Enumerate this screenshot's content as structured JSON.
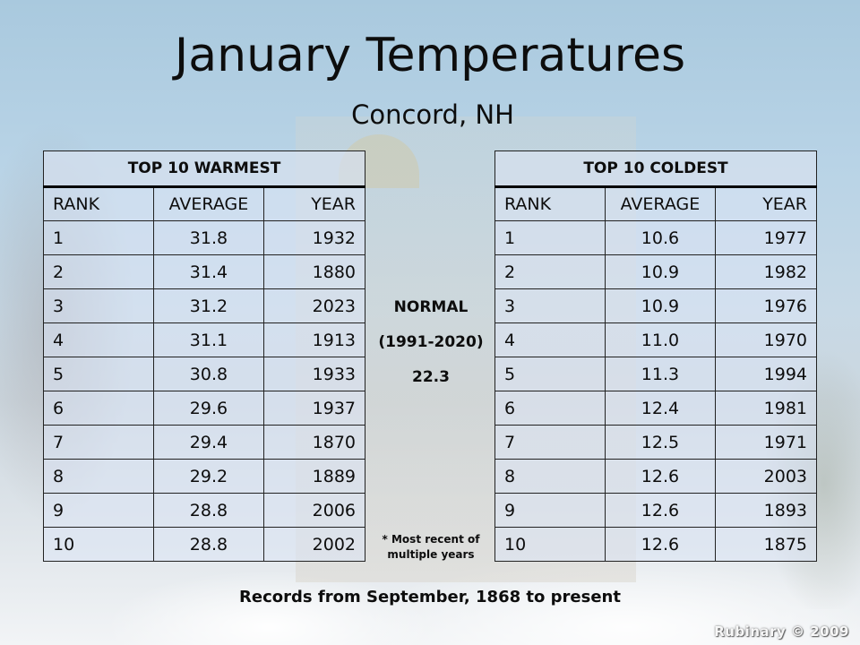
{
  "title": "January Temperatures",
  "subtitle": "Concord, NH",
  "warmest": {
    "header": "TOP 10 WARMEST",
    "columns": [
      "RANK",
      "AVERAGE",
      "YEAR"
    ],
    "rows": [
      [
        "1",
        "31.8",
        "1932"
      ],
      [
        "2",
        "31.4",
        "1880"
      ],
      [
        "3",
        "31.2",
        "2023"
      ],
      [
        "4",
        "31.1",
        "1913"
      ],
      [
        "5",
        "30.8",
        "1933"
      ],
      [
        "6",
        "29.6",
        "1937"
      ],
      [
        "7",
        "29.4",
        "1870"
      ],
      [
        "8",
        "29.2",
        "1889"
      ],
      [
        "9",
        "28.8",
        "2006"
      ],
      [
        "10",
        "28.8",
        "2002"
      ]
    ]
  },
  "coldest": {
    "header": "TOP 10 COLDEST",
    "columns": [
      "RANK",
      "AVERAGE",
      "YEAR"
    ],
    "rows": [
      [
        "1",
        "10.6",
        "1977"
      ],
      [
        "2",
        "10.9",
        "1982"
      ],
      [
        "3",
        "10.9",
        "1976"
      ],
      [
        "4",
        "11.0",
        "1970"
      ],
      [
        "5",
        "11.3",
        "1994"
      ],
      [
        "6",
        "12.4",
        "1981"
      ],
      [
        "7",
        "12.5",
        "1971"
      ],
      [
        "8",
        "12.6",
        "2003"
      ],
      [
        "9",
        "12.6",
        "1893"
      ],
      [
        "10",
        "12.6",
        "1875"
      ]
    ]
  },
  "normal": {
    "label": "NORMAL",
    "period": "(1991-2020)",
    "value": "22.3"
  },
  "footnote_line1": "* Most recent of",
  "footnote_line2": "multiple years",
  "records_note": "Records from September, 1868 to present",
  "watermark": "Rubinary © 2009"
}
